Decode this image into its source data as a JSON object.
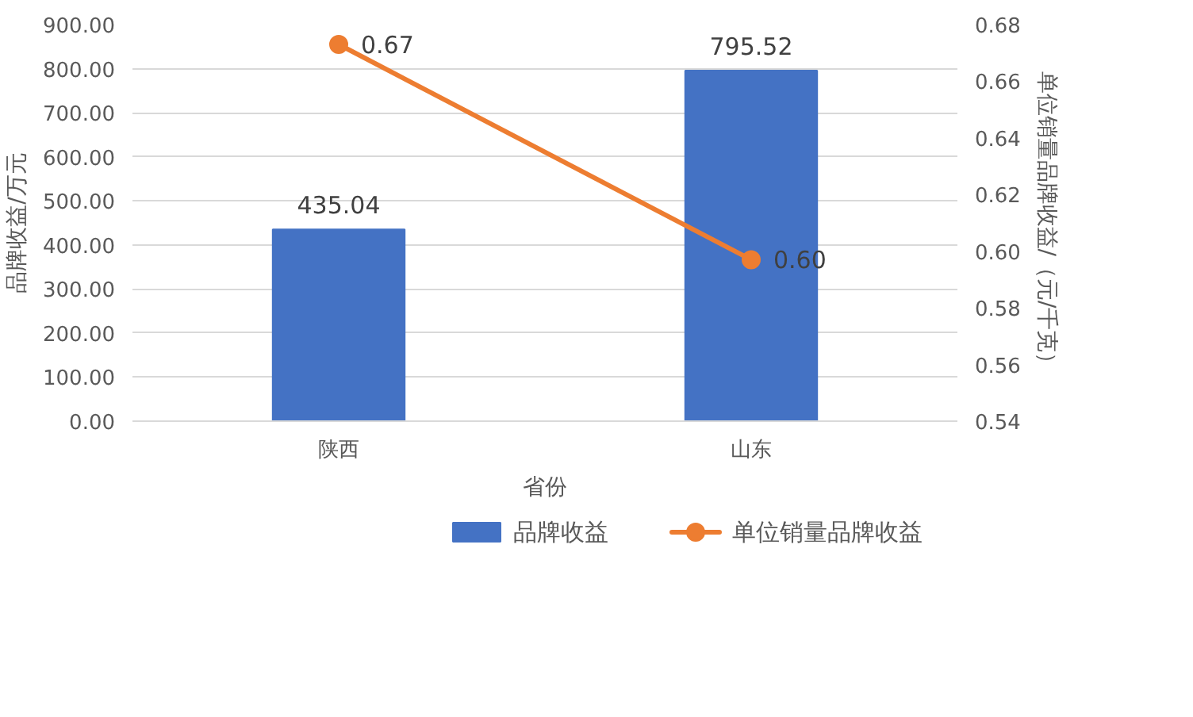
{
  "chart_data": {
    "type": "bar",
    "xlabel": "省份",
    "ylabel": "品牌收益/万元",
    "y2label": "单位销量品牌收益/（元/千克）",
    "categories": [
      "陕西",
      "山东"
    ],
    "series": [
      {
        "name": "品牌收益",
        "color": "#4472c4",
        "values": [
          435.04,
          795.52
        ],
        "value_labels": [
          "435.04",
          "795.52"
        ]
      },
      {
        "name": "单位销量品牌收益",
        "type": "line",
        "axis": "y2",
        "color": "#ed7d31",
        "values": [
          0.673,
          0.597
        ],
        "value_labels": [
          "0.67",
          "0.60"
        ]
      }
    ],
    "ylim": [
      0,
      900
    ],
    "yticks": [
      {
        "value": 0,
        "label": "0.00"
      },
      {
        "value": 100,
        "label": "100.00"
      },
      {
        "value": 200,
        "label": "200.00"
      },
      {
        "value": 300,
        "label": "300.00"
      },
      {
        "value": 400,
        "label": "400.00"
      },
      {
        "value": 500,
        "label": "500.00"
      },
      {
        "value": 600,
        "label": "600.00"
      },
      {
        "value": 700,
        "label": "700.00"
      },
      {
        "value": 800,
        "label": "800.00"
      },
      {
        "value": 900,
        "label": "900.00"
      }
    ],
    "y2lim": [
      0.54,
      0.68
    ],
    "y2ticks": [
      {
        "value": 0.54,
        "label": "0.54"
      },
      {
        "value": 0.56,
        "label": "0.56"
      },
      {
        "value": 0.58,
        "label": "0.58"
      },
      {
        "value": 0.6,
        "label": "0.60"
      },
      {
        "value": 0.62,
        "label": "0.62"
      },
      {
        "value": 0.64,
        "label": "0.64"
      },
      {
        "value": 0.66,
        "label": "0.66"
      },
      {
        "value": 0.68,
        "label": "0.68"
      }
    ],
    "grid": "y",
    "legend": "bottom",
    "marker": "circle",
    "line_style": "solid"
  }
}
